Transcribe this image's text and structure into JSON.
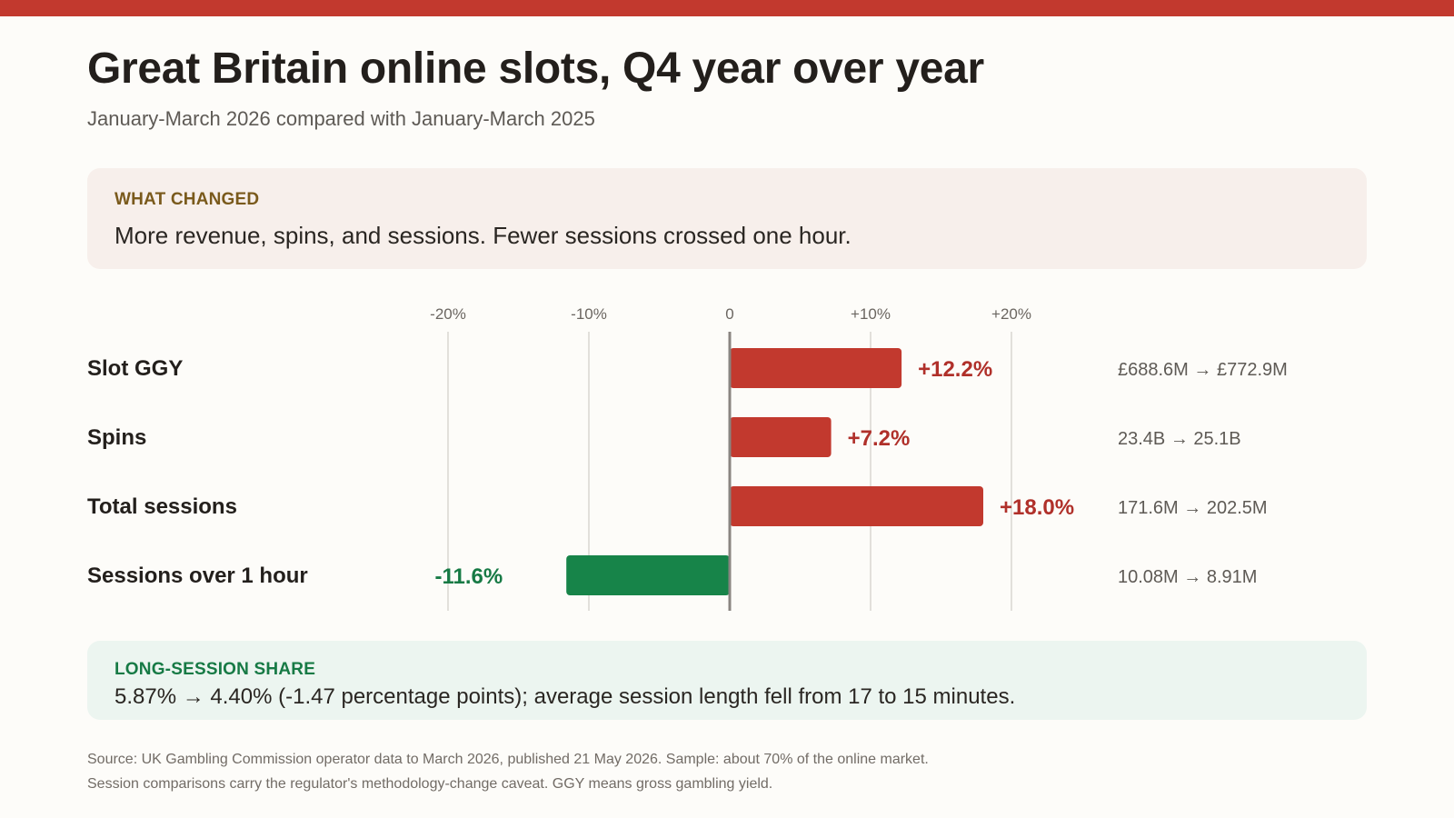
{
  "header": {
    "title": "Great Britain online slots, Q4 year over year",
    "subtitle": "January-March 2026 compared with January-March 2025"
  },
  "what_changed": {
    "label": "WHAT CHANGED",
    "text": "More revenue, spins, and sessions. Fewer sessions crossed one hour."
  },
  "long_session": {
    "label": "LONG-SESSION SHARE",
    "text": "5.87% → 4.40% (-1.47 percentage points); average session length fell from 17 to 15 minutes."
  },
  "source": {
    "line1": "Source: UK Gambling Commission operator data to March 2026, published 21 May 2026. Sample: about 70% of the online market.",
    "line2": "Session comparisons carry the regulator's methodology-change caveat. GGY means gross gambling yield."
  },
  "colors": {
    "accent": "#c2392e",
    "increase": "#c2392e",
    "increase_label": "#b0302a",
    "decrease": "#178449",
    "decrease_label": "#177a45"
  },
  "chart_data": {
    "type": "bar",
    "orientation": "horizontal",
    "xlim": [
      -25,
      25
    ],
    "x_ticks": [
      {
        "value": -20,
        "label": "-20%"
      },
      {
        "value": -10,
        "label": "-10%"
      },
      {
        "value": 0,
        "label": "0"
      },
      {
        "value": 10,
        "label": "+10%"
      },
      {
        "value": 20,
        "label": "+20%"
      }
    ],
    "grid": true,
    "categories": [
      "Slot GGY",
      "Spins",
      "Total sessions",
      "Sessions over 1 hour"
    ],
    "values": [
      12.2,
      7.2,
      18.0,
      -11.6
    ],
    "value_labels": [
      "+12.2%",
      "+7.2%",
      "+18.0%",
      "-11.6%"
    ],
    "comparisons": [
      "£688.6M → £772.9M",
      "23.4B → 25.1B",
      "171.6M → 202.5M",
      "10.08M → 8.91M"
    ]
  }
}
